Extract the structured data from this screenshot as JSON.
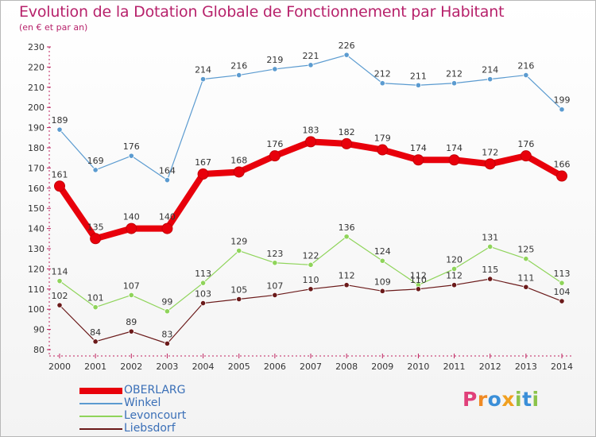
{
  "title": "Evolution de la Dotation Globale de Fonctionnement par Habitant",
  "subtitle": "(en € et par an)",
  "colors": {
    "title": "#b7226b",
    "axis": "#c0225f",
    "legend_text": "#3a6fb7",
    "grid": "#dcdcdc"
  },
  "logo": {
    "letters": [
      {
        "ch": "P",
        "color": "#e0407a"
      },
      {
        "ch": "r",
        "color": "#f08a24"
      },
      {
        "ch": "o",
        "color": "#3b8fd8"
      },
      {
        "ch": "x",
        "color": "#f0a020"
      },
      {
        "ch": "i",
        "color": "#8bc34a"
      },
      {
        "ch": "t",
        "color": "#3b8fd8"
      },
      {
        "ch": "i",
        "color": "#8bc34a"
      }
    ],
    "icon": "proxiti-logo"
  },
  "chart_data": {
    "type": "line",
    "title": "Evolution de la Dotation Globale de Fonctionnement par Habitant",
    "ylabel": "(en € et par an)",
    "xlabel": "",
    "ylim": [
      80,
      230
    ],
    "yticks": [
      80,
      90,
      100,
      110,
      120,
      130,
      140,
      150,
      160,
      170,
      180,
      190,
      200,
      210,
      220,
      230
    ],
    "grid": false,
    "legend_position": "bottom-left",
    "categories": [
      "2000",
      "2001",
      "2002",
      "2003",
      "2004",
      "2005",
      "2006",
      "2007",
      "2008",
      "2009",
      "2010",
      "2011",
      "2012",
      "2013",
      "2014"
    ],
    "series": [
      {
        "name": "OBERLARG",
        "color": "#e8000b",
        "width": "thick",
        "values": [
          161,
          135,
          140,
          140,
          167,
          168,
          176,
          183,
          182,
          179,
          174,
          174,
          172,
          176,
          166
        ]
      },
      {
        "name": "Winkel",
        "color": "#5b9bd0",
        "width": "thin",
        "values": [
          189,
          169,
          176,
          164,
          214,
          216,
          219,
          221,
          226,
          212,
          211,
          212,
          214,
          216,
          199
        ]
      },
      {
        "name": "Levoncourt",
        "color": "#8fd45a",
        "width": "thin",
        "values": [
          114,
          101,
          107,
          99,
          113,
          129,
          123,
          122,
          136,
          124,
          112,
          120,
          131,
          125,
          113
        ]
      },
      {
        "name": "Liebsdorf",
        "color": "#6b1a1a",
        "width": "thin",
        "values": [
          102,
          84,
          89,
          83,
          103,
          105,
          107,
          110,
          112,
          109,
          110,
          112,
          115,
          111,
          104
        ]
      }
    ],
    "data_labels": {
      "Winkel": [
        "189",
        "169",
        "176",
        "164",
        "214",
        "216",
        "219",
        "221",
        "226",
        "212",
        "211",
        "212",
        "214",
        "216",
        "199"
      ],
      "OBERLARG": [
        "161",
        "135",
        "140",
        "140",
        "167",
        "168",
        "176",
        "183",
        "182",
        "179",
        "174",
        "174",
        "172",
        "176",
        "166"
      ],
      "Levoncourt": [
        "114",
        "101",
        "107",
        "99",
        "113",
        "129",
        "123",
        "122",
        "136",
        "124",
        "112",
        "120",
        "131",
        "125",
        "113"
      ],
      "Liebsdorf": [
        "102",
        "84",
        "89",
        "83",
        "103",
        "105",
        "107",
        "110",
        "112",
        "109",
        "110",
        "112",
        "115",
        "111",
        "104"
      ]
    }
  }
}
